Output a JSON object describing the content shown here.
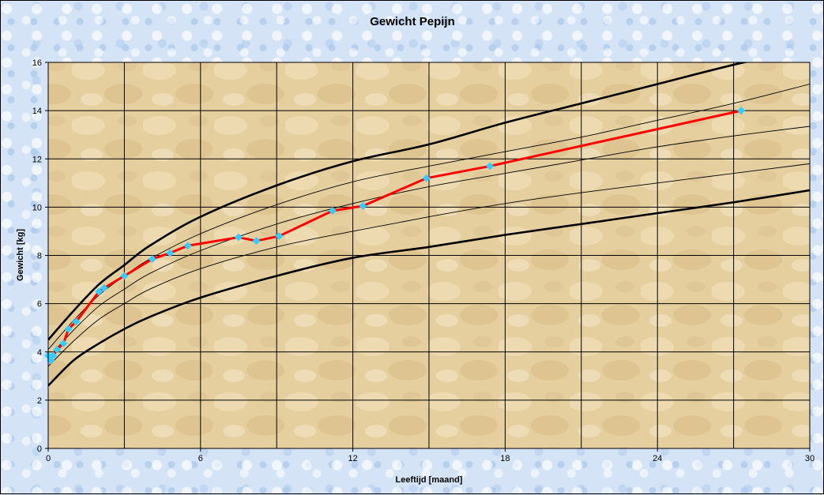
{
  "chart_data": {
    "type": "line",
    "title": "Gewicht Pepijn",
    "xlabel": "Leeftijd [maand]",
    "ylabel": "Gewicht [kg]",
    "xlim": [
      0,
      30
    ],
    "ylim": [
      0,
      16
    ],
    "xticks": [
      0,
      6,
      12,
      18,
      24,
      30
    ],
    "yticks": [
      0,
      2,
      4,
      6,
      8,
      10,
      12,
      14,
      16
    ],
    "x_gridlines": [
      0,
      3,
      6,
      9,
      12,
      15,
      18,
      21,
      24,
      27,
      30
    ],
    "grid": true,
    "legend": "none",
    "colors": {
      "series": "#ff0000",
      "markers": "#33ccff",
      "reference": "#000000",
      "plot_background": "#e8d2a6",
      "frame_background": "#d4e4f6"
    },
    "series": [
      {
        "role": "measurement",
        "x": [
          0.0,
          0.1,
          0.2,
          0.35,
          0.6,
          0.8,
          1.1,
          2.0,
          2.2,
          3.0,
          4.1,
          4.8,
          5.5,
          7.5,
          8.2,
          9.1,
          11.2,
          12.4,
          14.9,
          17.4,
          27.3
        ],
        "y": [
          3.85,
          3.65,
          3.85,
          4.1,
          4.35,
          4.95,
          5.25,
          6.5,
          6.65,
          7.15,
          7.85,
          8.1,
          8.4,
          8.75,
          8.6,
          8.8,
          9.85,
          10.05,
          11.2,
          11.7,
          14.0
        ]
      },
      {
        "role": "reference",
        "weight": "thick",
        "x": [
          0,
          1,
          2,
          3,
          4,
          6,
          9,
          12,
          15,
          18,
          21,
          24,
          27,
          30
        ],
        "y": [
          4.5,
          5.7,
          6.8,
          7.6,
          8.4,
          9.6,
          10.9,
          11.9,
          12.6,
          13.5,
          14.3,
          15.1,
          15.9,
          16.6
        ]
      },
      {
        "role": "reference",
        "weight": "thin",
        "x": [
          0,
          1,
          2,
          3,
          4,
          6,
          9,
          12,
          15,
          18,
          21,
          24,
          27,
          30
        ],
        "y": [
          4.1,
          5.3,
          6.35,
          7.15,
          7.85,
          8.9,
          10.1,
          11.05,
          11.7,
          12.3,
          12.9,
          13.6,
          14.3,
          15.1
        ]
      },
      {
        "role": "reference",
        "weight": "thin",
        "x": [
          0,
          1,
          2,
          3,
          4,
          6,
          9,
          12,
          15,
          18,
          21,
          24,
          27,
          30
        ],
        "y": [
          3.75,
          4.9,
          5.9,
          6.6,
          7.25,
          8.2,
          9.3,
          10.15,
          10.85,
          11.4,
          11.95,
          12.5,
          12.95,
          13.35
        ]
      },
      {
        "role": "reference",
        "weight": "thin",
        "x": [
          0,
          1,
          2,
          3,
          4,
          6,
          9,
          12,
          15,
          18,
          21,
          24,
          27,
          30
        ],
        "y": [
          3.4,
          4.45,
          5.35,
          6.0,
          6.6,
          7.45,
          8.35,
          9.0,
          9.6,
          10.15,
          10.6,
          11.0,
          11.4,
          11.8
        ]
      },
      {
        "role": "reference",
        "weight": "thick",
        "x": [
          0,
          1,
          2,
          3,
          4,
          6,
          9,
          12,
          15,
          18,
          21,
          24,
          27,
          30
        ],
        "y": [
          2.6,
          3.65,
          4.35,
          4.95,
          5.45,
          6.25,
          7.15,
          7.9,
          8.35,
          8.85,
          9.3,
          9.75,
          10.2,
          10.7
        ]
      }
    ]
  }
}
